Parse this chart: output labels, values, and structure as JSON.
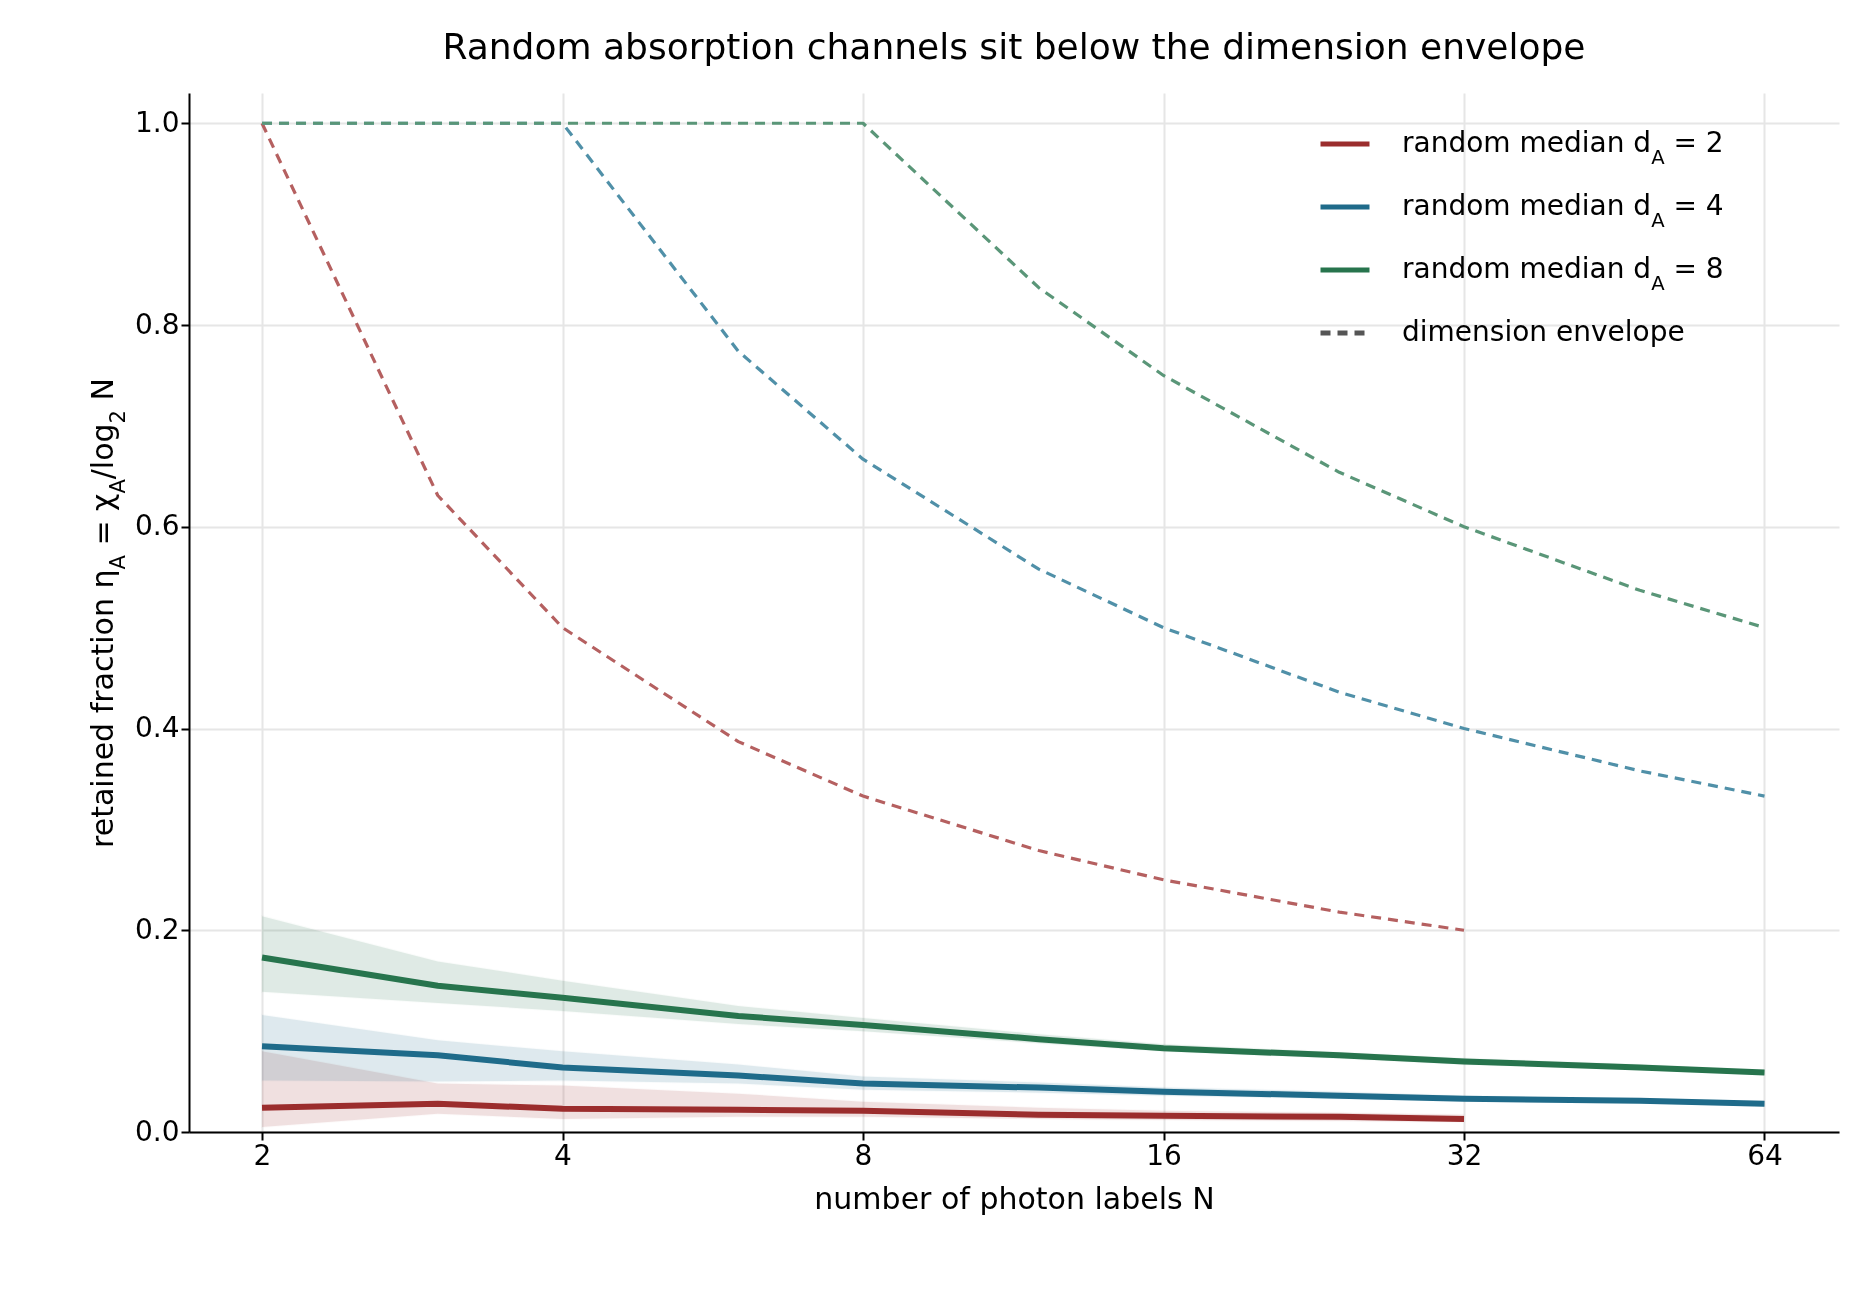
{
  "chart_data": {
    "type": "line",
    "title": "Random absorption channels sit below the dimension envelope",
    "xlabel": "number of photon labels N",
    "ylabel": "retained fraction η$_{A}$ = χ$_{A}$/log$_{2}$ N",
    "log": "x",
    "xlim": [
      1.69,
      76
    ],
    "xticks": [
      2,
      4,
      8,
      16,
      32,
      64
    ],
    "ylim": [
      0,
      1.03
    ],
    "yticks": [
      {
        "value": 0,
        "label": "0.0"
      },
      {
        "value": 0.2,
        "label": "0.2"
      },
      {
        "value": 0.4,
        "label": "0.4"
      },
      {
        "value": 0.6,
        "label": "0.6"
      },
      {
        "value": 0.8,
        "label": "0.8"
      },
      {
        "value": 1.0,
        "label": "1.0"
      }
    ],
    "grid": true,
    "legend": "top right",
    "series": [
      {
        "color": "#b56060",
        "line_style": "dashed",
        "x": [
          2,
          3,
          4,
          6,
          8,
          12,
          16,
          24,
          32
        ],
        "values": [
          1.0,
          0.631,
          0.5,
          0.387,
          0.333,
          0.279,
          0.25,
          0.218,
          0.2
        ]
      },
      {
        "color": "#5090a8",
        "line_style": "dashed",
        "x": [
          2,
          3,
          4,
          6,
          8,
          12,
          16,
          24,
          32,
          48,
          64
        ],
        "values": [
          1.0,
          1.0,
          1.0,
          0.774,
          0.667,
          0.558,
          0.5,
          0.436,
          0.4,
          0.358,
          0.333
        ]
      },
      {
        "color": "#5a9678",
        "line_style": "dashed",
        "x": [
          2,
          3,
          4,
          6,
          8,
          12,
          16,
          24,
          32,
          48,
          64
        ],
        "values": [
          1.0,
          1.0,
          1.0,
          1.0,
          1.0,
          0.837,
          0.75,
          0.654,
          0.6,
          0.537,
          0.5
        ]
      },
      {
        "name": "random median d$_{A}$ = 2",
        "color": "#9b2d2d",
        "line_style": "solid",
        "x": [
          2,
          3,
          4,
          6,
          8,
          12,
          16,
          24,
          32
        ],
        "values": [
          0.024,
          0.028,
          0.023,
          0.022,
          0.021,
          0.017,
          0.016,
          0.015,
          0.013
        ],
        "lower": [
          0.005,
          0.018,
          0.013,
          0.015,
          0.015,
          0.013,
          0.012,
          0.011,
          0.01
        ],
        "upper": [
          0.08,
          0.048,
          0.046,
          0.038,
          0.03,
          0.024,
          0.021,
          0.019,
          0.017
        ]
      },
      {
        "name": "random median d$_{A}$ = 4",
        "color": "#1f6b8a",
        "line_style": "solid",
        "x": [
          2,
          3,
          4,
          6,
          8,
          12,
          16,
          24,
          32,
          48,
          64
        ],
        "values": [
          0.085,
          0.076,
          0.064,
          0.056,
          0.048,
          0.044,
          0.04,
          0.036,
          0.033,
          0.031,
          0.028
        ],
        "lower": [
          0.051,
          0.05,
          0.051,
          0.048,
          0.042,
          0.039,
          0.036,
          0.033,
          0.031,
          0.029,
          0.026
        ],
        "upper": [
          0.116,
          0.091,
          0.08,
          0.067,
          0.055,
          0.049,
          0.044,
          0.04,
          0.036,
          0.033,
          0.03
        ]
      },
      {
        "name": "random median d$_{A}$ = 8",
        "color": "#27744d",
        "line_style": "solid",
        "x": [
          2,
          3,
          4,
          6,
          8,
          12,
          16,
          24,
          32,
          48,
          64
        ],
        "values": [
          0.173,
          0.145,
          0.133,
          0.115,
          0.106,
          0.092,
          0.083,
          0.076,
          0.07,
          0.064,
          0.059
        ],
        "lower": [
          0.139,
          0.128,
          0.12,
          0.107,
          0.1,
          0.088,
          0.08,
          0.073,
          0.067,
          0.062,
          0.057
        ],
        "upper": [
          0.214,
          0.169,
          0.15,
          0.125,
          0.113,
          0.097,
          0.087,
          0.079,
          0.073,
          0.067,
          0.061
        ]
      },
      {
        "name": "dimension envelope",
        "color": "#555555",
        "line_style": "dashed"
      }
    ]
  }
}
